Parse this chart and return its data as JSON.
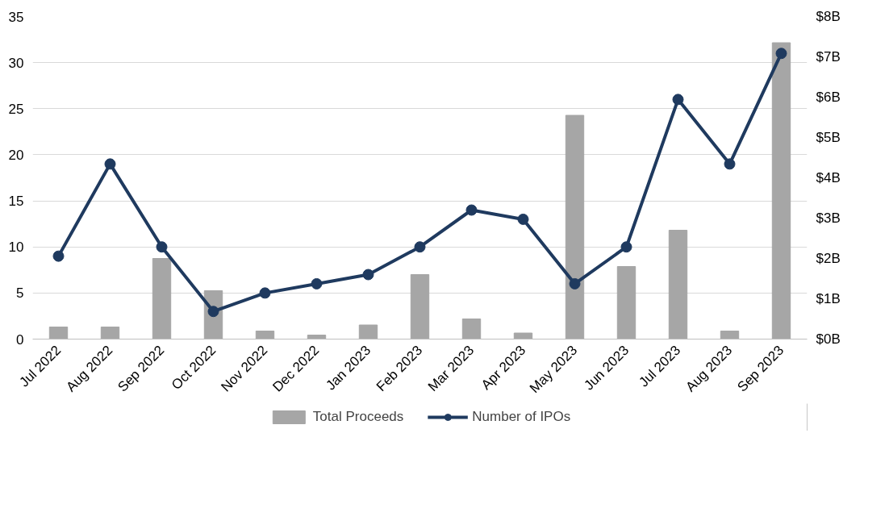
{
  "chart_data": {
    "type": "bar",
    "categories": [
      "Jul 2022",
      "Aug 2022",
      "Sep 2022",
      "Oct 2022",
      "Nov 2022",
      "Dec 2022",
      "Jan 2023",
      "Feb 2023",
      "Mar 2023",
      "Apr 2023",
      "May 2023",
      "Jun 2023",
      "Jul 2023",
      "Aug 2023",
      "Sep 2023"
    ],
    "series": [
      {
        "name": "Total Proceeds",
        "axis": "y2",
        "color": "#a6a6a6",
        "values": [
          0.3,
          0.3,
          2.0,
          1.2,
          0.2,
          0.1,
          0.35,
          1.6,
          0.5,
          0.15,
          5.55,
          1.8,
          2.7,
          0.2,
          7.35
        ]
      },
      {
        "name": "Number of IPOs",
        "type": "line",
        "color": "#1f3a5f",
        "marker": "circle",
        "values": [
          9,
          19,
          10,
          3,
          5,
          6,
          7,
          10,
          14,
          13,
          6,
          10,
          26,
          19,
          31
        ]
      }
    ],
    "ylim": [
      0,
      35
    ],
    "yticks": [
      0,
      5,
      10,
      15,
      20,
      25,
      30,
      35
    ],
    "y2lim": [
      0,
      8
    ],
    "y2ticks": [
      {
        "value": 0,
        "label": "$0B"
      },
      {
        "value": 1,
        "label": "$1B"
      },
      {
        "value": 2,
        "label": "$2B"
      },
      {
        "value": 3,
        "label": "$3B"
      },
      {
        "value": 4,
        "label": "$4B"
      },
      {
        "value": 5,
        "label": "$5B"
      },
      {
        "value": 6,
        "label": "$6B"
      },
      {
        "value": 7,
        "label": "$7B"
      },
      {
        "value": 8,
        "label": "$8B"
      }
    ],
    "grid": "y",
    "legend": "bottom"
  }
}
